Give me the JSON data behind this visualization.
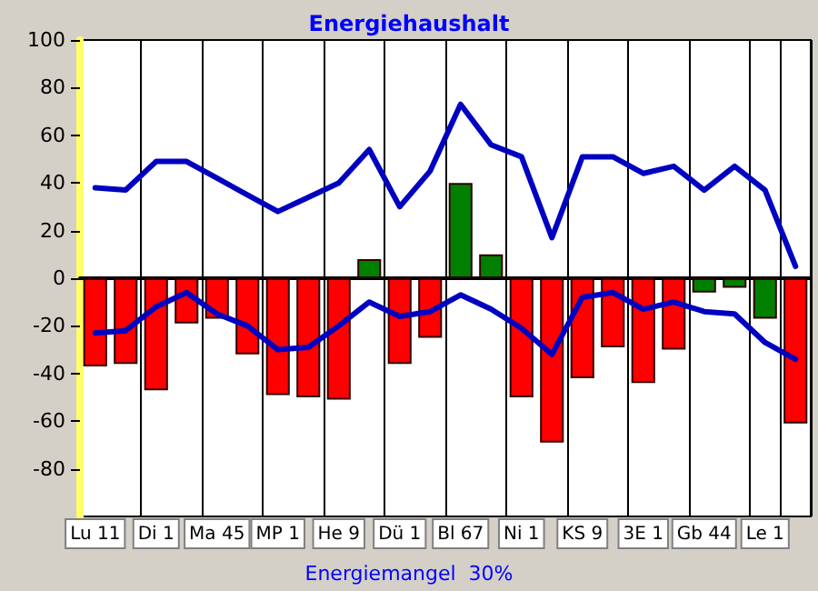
{
  "chart_data": {
    "type": "bar",
    "title": "Energiehaushalt",
    "annotations": [
      "Energiemangel  30%"
    ],
    "categories": [
      "Lu 11",
      null,
      "Di 1",
      null,
      "Ma 45",
      null,
      "MP 1",
      null,
      "He 9",
      null,
      "Dü 1",
      null,
      "Bl 67",
      null,
      "Ni 1",
      null,
      "KS 9",
      null,
      "3E 1",
      null,
      "Gb 44",
      null,
      "Le 1",
      null
    ],
    "series": [
      {
        "values": [
          -37,
          -36,
          -47,
          -19,
          -17,
          -32,
          -49,
          -50,
          -51,
          8,
          -36,
          -25,
          40,
          10,
          -50,
          -69,
          -42,
          -29,
          -44,
          -30,
          -6,
          -4,
          -17,
          -61
        ],
        "colors": [
          "#ff0000",
          "#ff0000",
          "#ff0000",
          "#ff0000",
          "#ff0000",
          "#ff0000",
          "#ff0000",
          "#ff0000",
          "#ff0000",
          "#008000",
          "#ff0000",
          "#ff0000",
          "#008000",
          "#008000",
          "#ff0000",
          "#ff0000",
          "#ff0000",
          "#ff0000",
          "#ff0000",
          "#ff0000",
          "#008000",
          "#008000",
          "#008000",
          "#ff0000"
        ]
      },
      {
        "type": "line",
        "color": "#0000c0",
        "values": [
          38,
          37,
          49,
          49,
          42,
          35,
          28,
          34,
          40,
          54,
          30,
          45,
          73,
          56,
          51,
          17,
          51,
          51,
          44,
          47,
          37,
          47,
          37,
          5
        ]
      },
      {
        "type": "line",
        "color": "#0000c0",
        "values": [
          -23,
          -22,
          -12,
          -6,
          -15,
          -20,
          -30,
          -29,
          -20,
          -10,
          -16,
          -14,
          -7,
          -13,
          -21,
          -32,
          -8,
          -6,
          -13,
          -10,
          -14,
          -15,
          -27,
          -34
        ]
      }
    ],
    "ylim": [
      -100,
      100
    ],
    "yticks": [
      -80,
      -60,
      -40,
      -20,
      0,
      20,
      40,
      60,
      80,
      100
    ],
    "grid": "x",
    "marker": "none",
    "line_style": "solid"
  }
}
